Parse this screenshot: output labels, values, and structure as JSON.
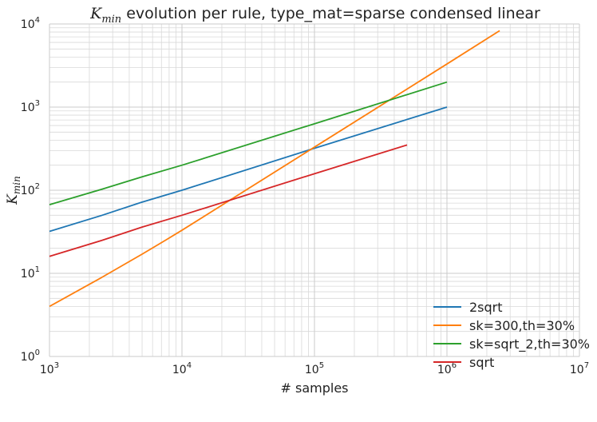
{
  "chart_data": {
    "type": "line",
    "title": {
      "math_main": "K",
      "math_sub": "min",
      "text": " evolution per rule, type_mat=sparse condensed linear"
    },
    "xlabel": "# samples",
    "ylabel": {
      "main": "K",
      "sub": "min"
    },
    "xscale": "log",
    "yscale": "log",
    "xlim": [
      1000,
      10000000
    ],
    "ylim": [
      1,
      10000
    ],
    "x_ticks": [
      {
        "base": "10",
        "exp": "3"
      },
      {
        "base": "10",
        "exp": "4"
      },
      {
        "base": "10",
        "exp": "5"
      },
      {
        "base": "10",
        "exp": "6"
      },
      {
        "base": "10",
        "exp": "7"
      }
    ],
    "y_ticks": [
      {
        "base": "10",
        "exp": "0"
      },
      {
        "base": "10",
        "exp": "1"
      },
      {
        "base": "10",
        "exp": "2"
      },
      {
        "base": "10",
        "exp": "3"
      },
      {
        "base": "10",
        "exp": "4"
      }
    ],
    "grid": true,
    "legend_position": "bottom-right",
    "series": [
      {
        "name": "2sqrt",
        "color": "#1f77b4",
        "x": [
          1000,
          2500,
          5000,
          10000,
          100000,
          1000000
        ],
        "y": [
          32,
          50,
          72,
          100,
          320,
          1000
        ]
      },
      {
        "name": "sk=300,th=30%",
        "color": "#ff7f0e",
        "x": [
          1000,
          2500,
          5000,
          7500,
          10000,
          100000,
          1000000,
          2500000
        ],
        "y": [
          4,
          9,
          17,
          25,
          33,
          330,
          3300,
          8300
        ]
      },
      {
        "name": "sk=sqrt_2,th=30%",
        "color": "#2ca02c",
        "x": [
          1000,
          2500,
          5000,
          10000,
          100000,
          1000000
        ],
        "y": [
          67,
          103,
          145,
          200,
          630,
          2000
        ]
      },
      {
        "name": "sqrt",
        "color": "#d62728",
        "x": [
          1000,
          2500,
          5000,
          10000,
          100000,
          500000
        ],
        "y": [
          16,
          25,
          36,
          50,
          158,
          350
        ]
      }
    ]
  }
}
